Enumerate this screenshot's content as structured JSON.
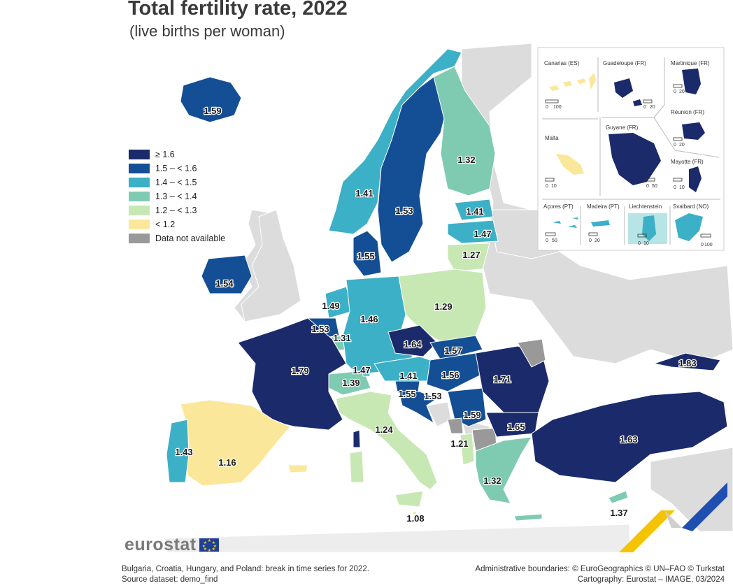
{
  "title": "Total fertility rate, 2022",
  "subtitle": "(live births per woman)",
  "colors": {
    "ge_1_6": "#1b2a6b",
    "1_5_1_6": "#144f95",
    "1_4_1_5": "#3cb0c6",
    "1_3_1_4": "#7fcbb2",
    "1_2_1_3": "#c7e8b3",
    "lt_1_2": "#fbe79a",
    "na": "#999999",
    "non_eu": "#dcdcdc",
    "sea": "#ffffff"
  },
  "legend": {
    "items": [
      {
        "label": "≥ 1.6",
        "color": "#1b2a6b"
      },
      {
        "label": "1.5 – < 1.6",
        "color": "#144f95"
      },
      {
        "label": "1.4 – < 1.5",
        "color": "#3cb0c6"
      },
      {
        "label": "1.3 – < 1.4",
        "color": "#7fcbb2"
      },
      {
        "label": "1.2 – < 1.3",
        "color": "#c7e8b3"
      },
      {
        "label": "< 1.2",
        "color": "#fbe79a"
      },
      {
        "label": "Data not available",
        "color": "#999999"
      }
    ]
  },
  "values": {
    "iceland": "1.59",
    "norway": "1.41",
    "sweden": "1.53",
    "finland": "1.32",
    "estonia": "1.41",
    "latvia": "1.47",
    "lithuania": "1.27",
    "denmark": "1.55",
    "ireland": "1.54",
    "netherlands": "1.49",
    "belgium": "1.53",
    "luxembourg": "1.31",
    "germany": "1.46",
    "poland": "1.29",
    "czechia": "1.64",
    "slovakia": "1.57",
    "austria": "1.41",
    "hungary": "1.56",
    "liechtenstein": "1.47",
    "switzerland": "1.39",
    "france": "1.79",
    "slovenia": "1.55",
    "croatia": "1.53",
    "serbia": "1.59",
    "romania": "1.71",
    "moldova": "1.83",
    "bulgaria": "1.65",
    "turkey": "1.63",
    "italy": "1.24",
    "albania": "1.21",
    "spain": "1.16",
    "portugal": "1.43",
    "greece": "1.32",
    "cyprus": "1.37",
    "malta": "1.08"
  },
  "insets": {
    "canarias": "Canarias (ES)",
    "guadeloupe": "Guadeloupe (FR)",
    "martinique": "Martinique (FR)",
    "reunion": "Réunion (FR)",
    "malta": "Malta",
    "guyane": "Guyane (FR)",
    "mayotte": "Mayotte (FR)",
    "acores": "Açores (PT)",
    "madeira": "Madeira (PT)",
    "liechtenstein": "Liechtenstein",
    "svalbard": "Svalbard (NO)",
    "scale_0": "0",
    "scale_10": "10",
    "scale_20": "20",
    "scale_50": "50",
    "scale_100": "100"
  },
  "branding": {
    "logo": "eurostat"
  },
  "footnotes": {
    "left_line1": "Bulgaria, Croatia, Hungary, and Poland: break in time series for 2022.",
    "left_line2": "Source dataset: demo_find",
    "right_line1": "Administrative boundaries: © EuroGeographics © UN–FAO © Turkstat",
    "right_line2": "Cartography: Eurostat – IMAGE, 03/2024"
  }
}
